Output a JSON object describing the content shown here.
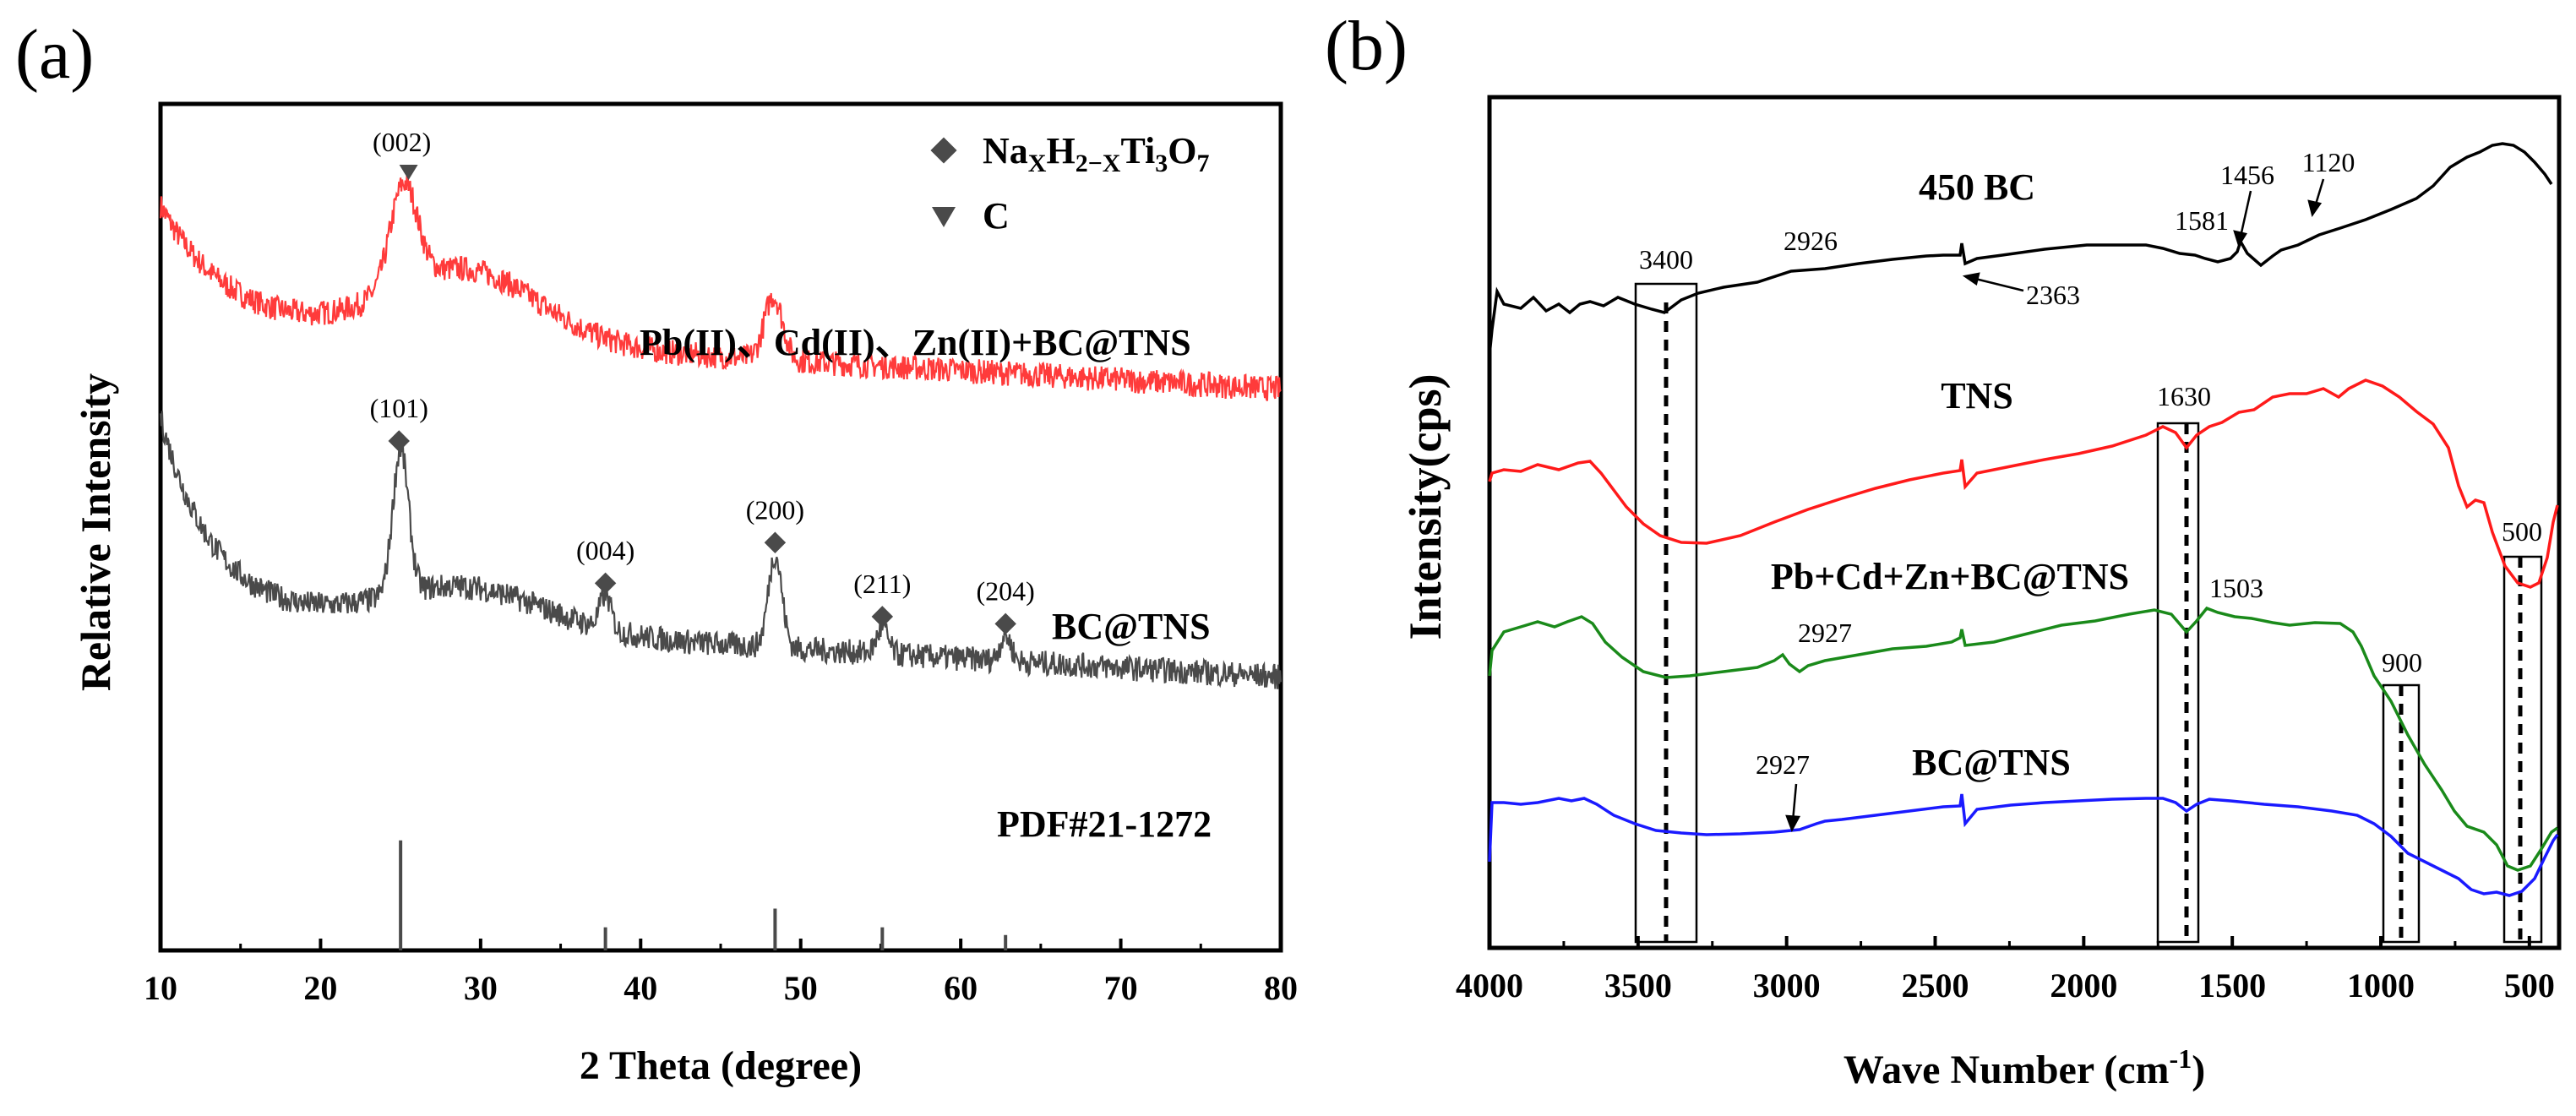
{
  "chart_data": [
    {
      "type": "line",
      "panel_label": "(a)",
      "xlabel": "2 Theta (degree)",
      "ylabel": "Relative Intensity",
      "xlim": [
        10,
        80
      ],
      "xticks": [
        "10",
        "20",
        "30",
        "40",
        "50",
        "60",
        "70",
        "80"
      ],
      "legend": [
        {
          "symbol": "diamond",
          "label_base": "Na",
          "sub1": "X",
          "mid1": "H",
          "sub2": "2−X",
          "mid2": "Ti",
          "sub3": "3",
          "mid3": "O",
          "sub4": "7"
        },
        {
          "symbol": "triangle",
          "label": "C"
        }
      ],
      "series": [
        {
          "name": "Pb(II)、Cd(II)、Zn(II)+BC@TNS",
          "color": "#ff3b3b",
          "offset": 0.74,
          "peaks": [
            {
              "x": 25.2,
              "h": 0.12,
              "w": 1.2
            },
            {
              "x": 48.3,
              "h": 0.075,
              "w": 0.8
            }
          ]
        },
        {
          "name": "BC@TNS",
          "color": "#4a4a4a",
          "offset": 0.4,
          "peaks": [
            {
              "x": 25.0,
              "h": 0.17,
              "w": 0.7
            },
            {
              "x": 37.8,
              "h": 0.04,
              "w": 0.5
            },
            {
              "x": 48.4,
              "h": 0.11,
              "w": 0.6
            },
            {
              "x": 55.1,
              "h": 0.03,
              "w": 0.5
            },
            {
              "x": 62.8,
              "h": 0.03,
              "w": 0.5
            }
          ]
        }
      ],
      "peak_labels": [
        {
          "text": "(002)",
          "x": 25.5,
          "marker": "triangle"
        },
        {
          "text": "(101)",
          "x": 24.9,
          "marker": "diamond"
        },
        {
          "text": "(004)",
          "x": 37.8,
          "marker": "diamond"
        },
        {
          "text": "(200)",
          "x": 48.4,
          "marker": "diamond"
        },
        {
          "text": "(211)",
          "x": 55.1,
          "marker": "diamond"
        },
        {
          "text": "(204)",
          "x": 62.8,
          "marker": "diamond"
        }
      ],
      "reference": {
        "name": "PDF#21-1272",
        "x": [
          25.0,
          37.8,
          48.4,
          55.1,
          62.8
        ],
        "intensity": [
          100,
          21,
          38,
          21,
          14
        ]
      }
    },
    {
      "type": "line",
      "panel_label": "(b)",
      "xlabel_base": "Wave Number (cm",
      "xlabel_sup": "-1",
      "xlabel_end": ")",
      "ylabel": "Intensity(cps)",
      "xlim": [
        4000,
        400
      ],
      "xticks": [
        "4000",
        "3500",
        "3000",
        "2500",
        "2000",
        "1500",
        "1000",
        "500"
      ],
      "series": [
        {
          "name": "450 BC",
          "color": "#000000"
        },
        {
          "name": "TNS",
          "color": "#ff1a1a"
        },
        {
          "name": "Pb+Cd+Zn+BC@TNS",
          "color": "#1a8a1a"
        },
        {
          "name": "BC@TNS",
          "color": "#1a1aff"
        }
      ],
      "annotations": [
        "3400",
        "2926",
        "2363",
        "1581",
        "1456",
        "1120",
        "1630",
        "1503",
        "2927",
        "2927",
        "900",
        "500"
      ]
    }
  ]
}
